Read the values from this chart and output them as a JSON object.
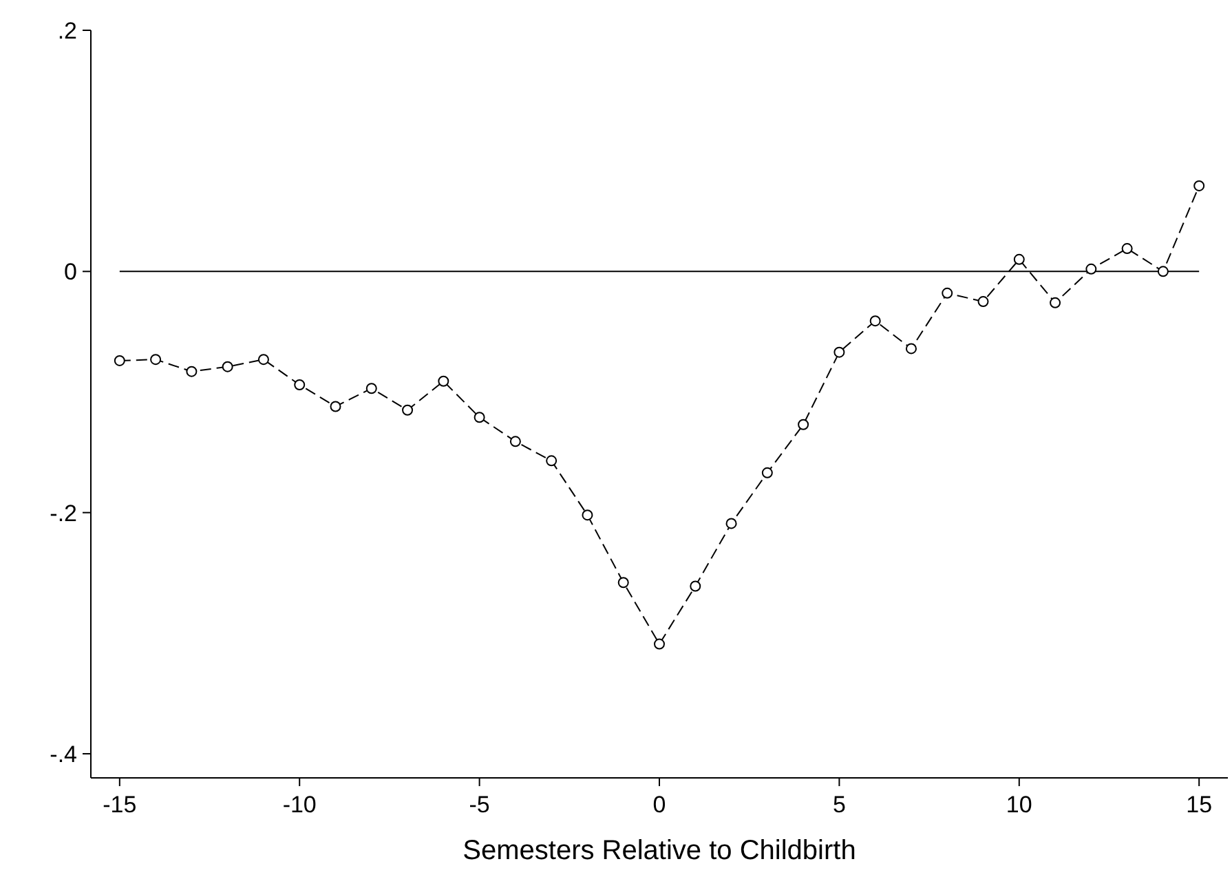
{
  "chart_data": {
    "type": "line",
    "xlabel": "Semesters Relative to Childbirth",
    "x": [
      -15,
      -14,
      -13,
      -12,
      -11,
      -10,
      -9,
      -8,
      -7,
      -6,
      -5,
      -4,
      -3,
      -2,
      -1,
      0,
      1,
      2,
      3,
      4,
      5,
      6,
      7,
      8,
      9,
      10,
      11,
      12,
      13,
      14,
      15
    ],
    "series": [
      {
        "color": "#000000",
        "values": [
          -0.074,
          -0.073,
          -0.083,
          -0.079,
          -0.073,
          -0.094,
          -0.112,
          -0.097,
          -0.115,
          -0.091,
          -0.121,
          -0.141,
          -0.157,
          -0.202,
          -0.258,
          -0.309,
          -0.261,
          -0.209,
          -0.167,
          -0.127,
          -0.067,
          -0.041,
          -0.064,
          -0.018,
          -0.025,
          0.01,
          -0.026,
          0.002,
          0.019,
          0,
          0.071
        ]
      }
    ],
    "xlim": [
      -15.8,
      15.8
    ],
    "xticks": [
      -15,
      -10,
      -5,
      0,
      5,
      10,
      15
    ],
    "ylim": [
      -0.42,
      0.2
    ],
    "yticks": [
      {
        "value": -0.4,
        "label": "-.4"
      },
      {
        "value": -0.2,
        "label": "-.2"
      },
      {
        "value": 0,
        "label": "0"
      },
      {
        "value": 0.2,
        "label": ".2"
      }
    ],
    "ref_lines": [
      {
        "axis": "y",
        "value": 0,
        "color": "#000000",
        "line_style": "solid"
      }
    ],
    "marker": "circle",
    "line_style": "dashed"
  }
}
